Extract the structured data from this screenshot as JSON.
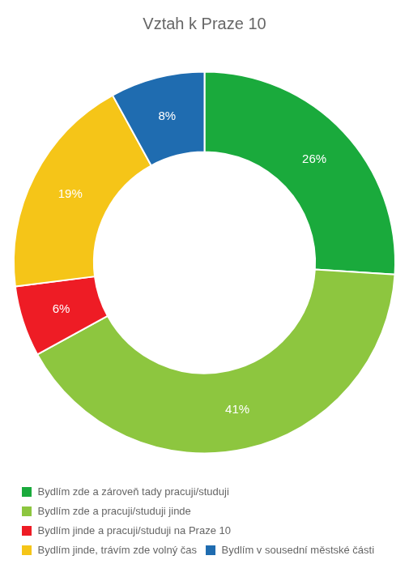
{
  "chart_data": {
    "type": "doughnut",
    "title": "Vztah k Praze 10",
    "categories": [
      "Bydlím zde a zároveň tady pracuji/studuji",
      "Bydlím zde a pracuji/studuji jinde",
      "Bydlím jinde a pracuji/studuji na Praze 10",
      "Bydlím jinde, trávím zde volný čas",
      "Bydlím v sousední městské části"
    ],
    "values": [
      26,
      41,
      6,
      19,
      8
    ],
    "value_labels": [
      "26%",
      "41%",
      "6%",
      "19%",
      "8%"
    ],
    "colors": [
      "#1aaa3c",
      "#8dc63f",
      "#ee1c25",
      "#f5c518",
      "#1f6cb0"
    ],
    "data_labels": true,
    "legend": "bottom"
  }
}
